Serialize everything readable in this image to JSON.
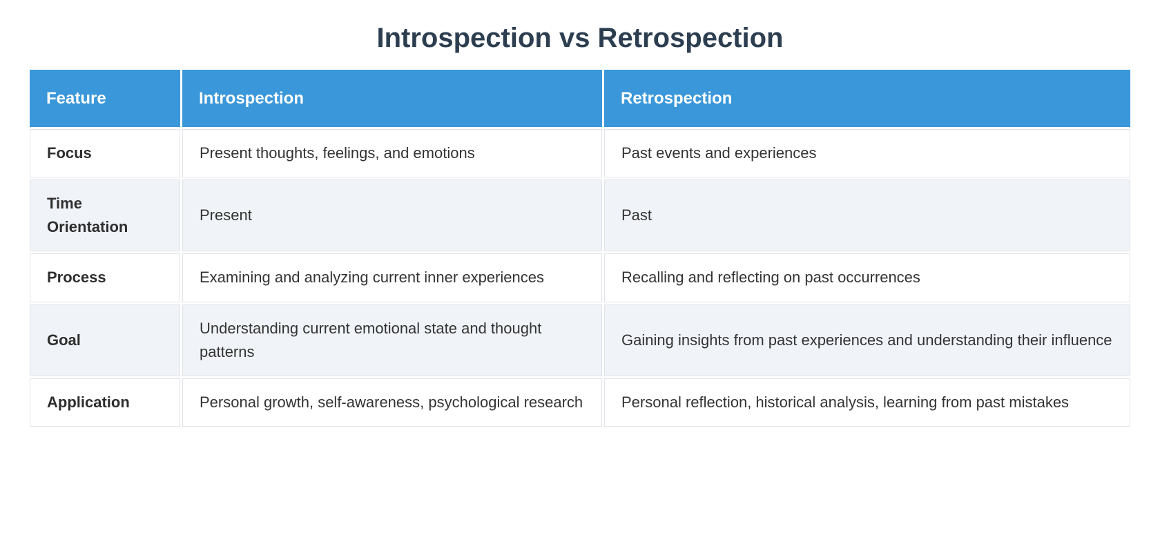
{
  "page": {
    "title": "Introspection vs Retrospection"
  },
  "colors": {
    "header_bg": "#3a97d9",
    "header_text": "#ffffff",
    "title_text": "#2c3e50",
    "body_text": "#333333",
    "feature_text": "#2e2e2e",
    "row_bg": "#ffffff",
    "row_alt_bg": "#f0f3f8",
    "cell_border": "#e0e3e7"
  },
  "table": {
    "columns": [
      "Feature",
      "Introspection",
      "Retrospection"
    ],
    "rows": [
      {
        "feature": "Focus",
        "introspection": "Present thoughts, feelings, and emotions",
        "retrospection": "Past events and experiences"
      },
      {
        "feature": "Time Orientation",
        "introspection": "Present",
        "retrospection": "Past"
      },
      {
        "feature": "Process",
        "introspection": "Examining and analyzing current inner experiences",
        "retrospection": "Recalling and reflecting on past occurrences"
      },
      {
        "feature": "Goal",
        "introspection": "Understanding current emotional state and thought patterns",
        "retrospection": "Gaining insights from past experiences and understanding their influence"
      },
      {
        "feature": "Application",
        "introspection": "Personal growth, self-awareness, psychological research",
        "retrospection": "Personal reflection, historical analysis, learning from past mistakes"
      }
    ]
  }
}
